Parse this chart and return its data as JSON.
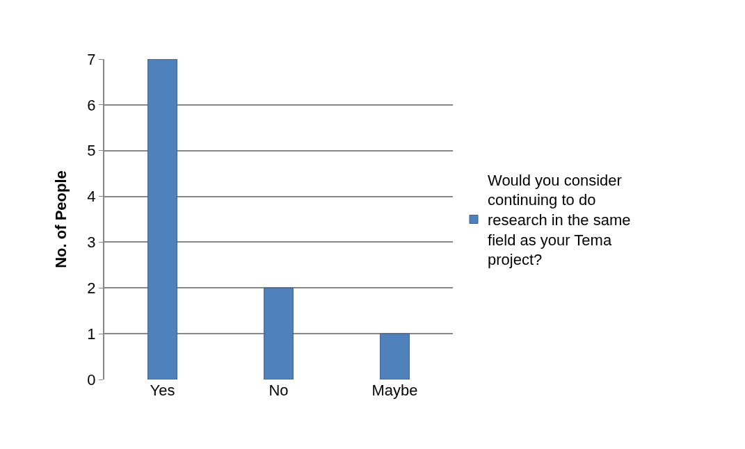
{
  "chart_data": {
    "type": "bar",
    "categories": [
      "Yes",
      "No",
      "Maybe"
    ],
    "series": [
      {
        "name": "Would you consider continuing to do research in the same field as your Tema project?",
        "color": "#4f81bd",
        "values": [
          7,
          2,
          1
        ]
      }
    ],
    "ylabel": "No. of People",
    "ylim": [
      0,
      7
    ],
    "yticks": [
      0,
      1,
      2,
      3,
      4,
      5,
      6,
      7
    ],
    "grid": "y",
    "legend": "right"
  }
}
